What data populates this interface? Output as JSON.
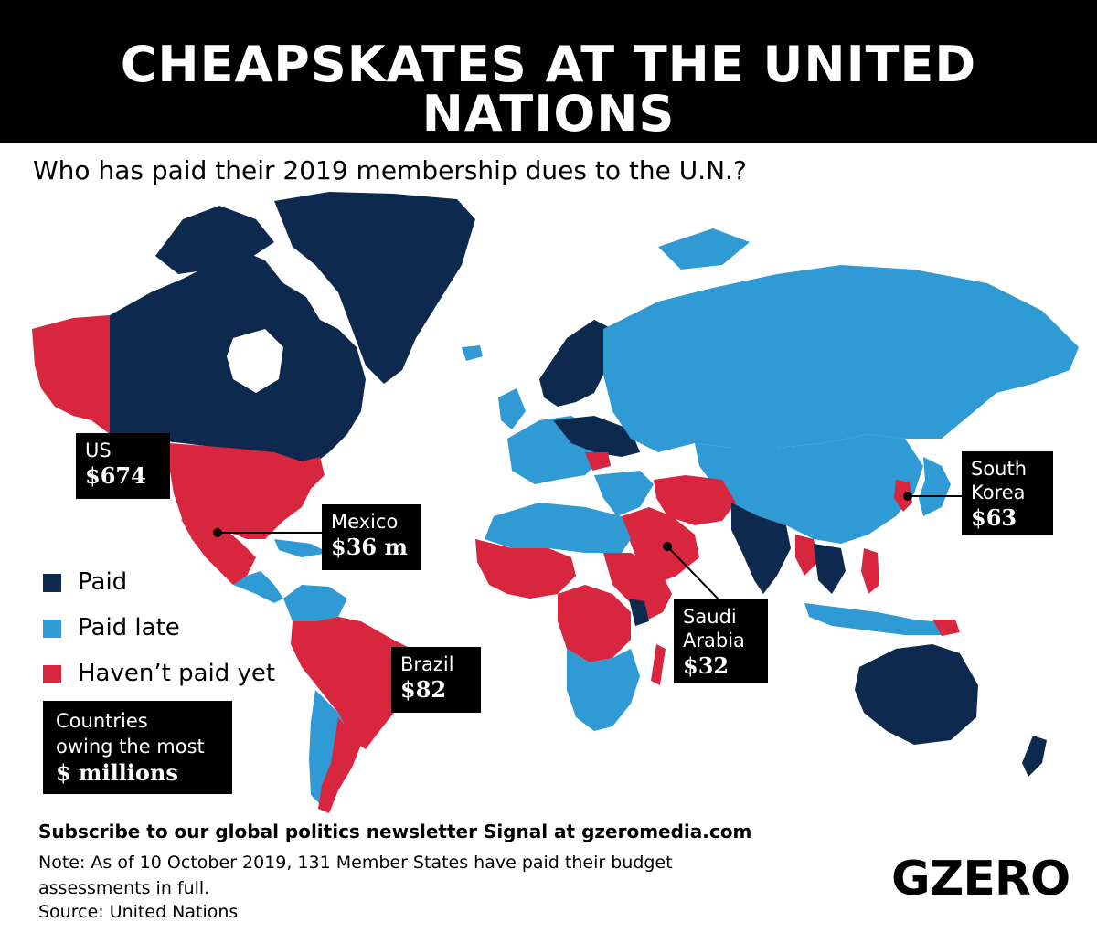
{
  "header": {
    "title": "CHEAPSKATES AT THE UNITED NATIONS"
  },
  "subtitle": "Who has paid their 2019 membership dues to the U.N.?",
  "colors": {
    "paid": "#0d2a4e",
    "paid_late": "#2f9ad3",
    "not_paid": "#d7263d",
    "background": "#ffffff",
    "header_bg": "#000000"
  },
  "legend": [
    {
      "label": "Paid",
      "color": "#0d2a4e"
    },
    {
      "label": "Paid late",
      "color": "#2f9ad3"
    },
    {
      "label": "Haven’t paid yet",
      "color": "#d7263d"
    }
  ],
  "callouts": {
    "us": {
      "name": "US",
      "amount": "$674 m"
    },
    "mexico": {
      "name": "Mexico",
      "amount": "$36 m"
    },
    "brazil": {
      "name": "Brazil",
      "amount": "$82 m"
    },
    "saudi": {
      "name1": "Saudi",
      "name2": "Arabia",
      "amount": "$32 m"
    },
    "korea": {
      "name1": "South",
      "name2": "Korea",
      "amount": "$63 m"
    }
  },
  "owed_box": {
    "line1": "Countries",
    "line2": "owing the most",
    "line3": "$ millions"
  },
  "footer": {
    "subscribe": "Subscribe to our global politics newsletter Signal at gzeromedia.com",
    "note_line1": "Note: As of 10 October 2019, 131 Member States have paid their budget",
    "note_line2": "assessments in full.",
    "source": "Source: United Nations",
    "logo": "GZERO"
  }
}
